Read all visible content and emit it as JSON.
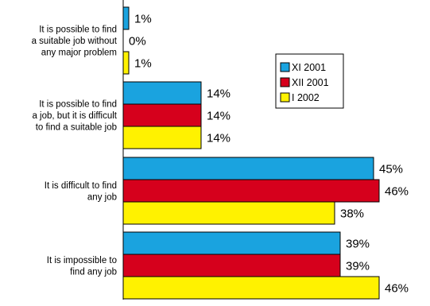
{
  "chart_data": {
    "type": "bar",
    "orientation": "horizontal",
    "categories": [
      [
        "It is possible to find",
        "a suitable job without",
        "any major problem"
      ],
      [
        "It is possible to find",
        "a job, but it is difficult",
        "to find a suitable job"
      ],
      [
        "It is difficult to find",
        "any job"
      ],
      [
        "It is impossible to",
        "find any job"
      ]
    ],
    "series": [
      {
        "name": "XI 2001",
        "color": "#1aa3df",
        "values": [
          1,
          14,
          45,
          39
        ]
      },
      {
        "name": "XII 2001",
        "color": "#d6001c",
        "values": [
          0,
          14,
          46,
          39
        ]
      },
      {
        "name": "I 2002",
        "color": "#fff200",
        "values": [
          1,
          14,
          38,
          46
        ]
      }
    ],
    "value_suffix": "%",
    "xlim": [
      0,
      100
    ],
    "grid": false,
    "legend_position": "top-right"
  }
}
